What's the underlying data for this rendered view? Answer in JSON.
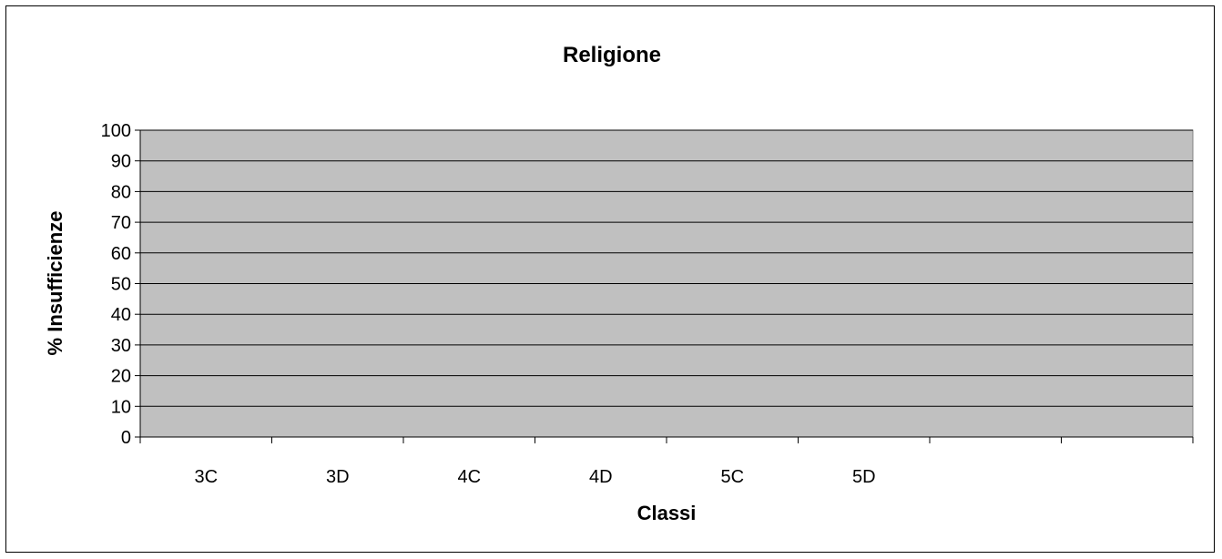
{
  "chart_data": {
    "type": "bar",
    "title": "Religione",
    "xlabel": "Classi",
    "ylabel": "% Insufficienze",
    "ylim": [
      0,
      100
    ],
    "yticks": [
      "0",
      "10",
      "20",
      "30",
      "40",
      "50",
      "60",
      "70",
      "80",
      "90",
      "100"
    ],
    "categories": [
      "3C",
      "3D",
      "4C",
      "4D",
      "5C",
      "5D",
      "",
      ""
    ],
    "values": [
      0,
      0,
      0,
      0,
      0,
      0,
      null,
      null
    ],
    "grid": true,
    "colors": {
      "plot_area": "#c0c0c0",
      "gridline": "#000000",
      "axis": "#808080"
    }
  }
}
